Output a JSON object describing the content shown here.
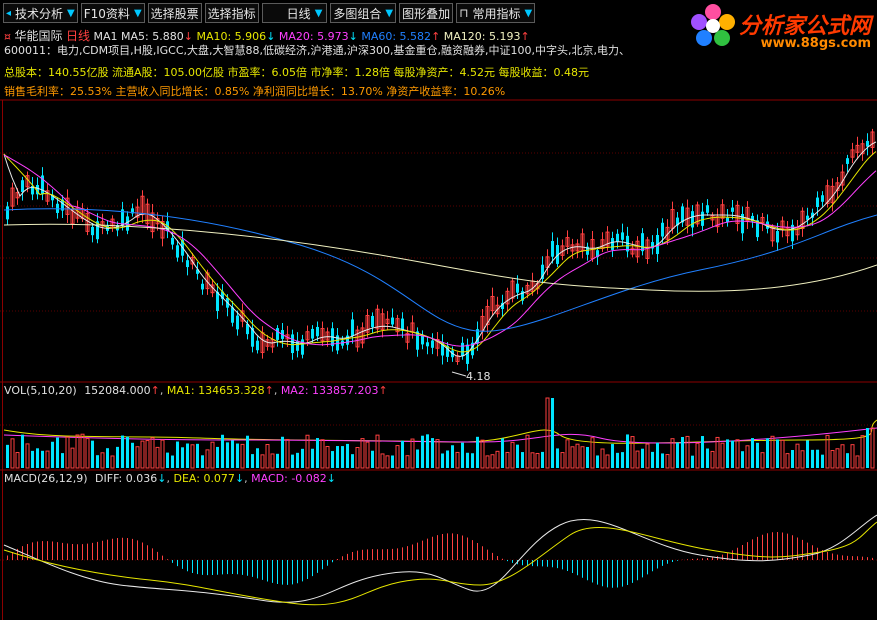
{
  "toolbar": {
    "items": [
      {
        "label": "技术分析",
        "arrow": "▼"
      },
      {
        "label": "F10资料",
        "arrow": "▼"
      },
      {
        "label": "选择股票",
        "arrow": ""
      },
      {
        "label": "选择指标",
        "arrow": ""
      },
      {
        "label": "日线",
        "arrow": "▼"
      },
      {
        "label": "多图组合",
        "arrow": "▼"
      },
      {
        "label": "图形叠加",
        "arrow": ""
      },
      {
        "label": "常用指标",
        "arrow": "▼"
      }
    ]
  },
  "logo": {
    "brand": "分析家公式网",
    "url": "www.88gs.com"
  },
  "stock": {
    "name": "华能国际",
    "period": "日线",
    "ma_labels": "MA1 MA5: 5.880",
    "ma10": "MA10: 5.906",
    "ma20": "MA20: 5.973",
    "ma60": "MA60: 5.582",
    "ma120": "MA120: 5.193",
    "tags": "600011：电力,CDM项目,H股,IGCC,大盘,大智慧88,低碳经济,沪港通,沪深300,基金重仓,融资融券,中证100,中字头,北京,电力、",
    "line2": "总股本：140.55亿股  流通A股：105.00亿股  市盈率：6.05倍  市净率：1.28倍  每股净资产：4.52元    每股收益：0.48元",
    "line3": "销售毛利率：25.53%  主营收入同比增长：0.85%  净利润同比增长：13.70%  净资产收益率：10.26%",
    "low_label": "4.18"
  },
  "volume": {
    "label": "VOL(5,10,20)",
    "vol": "152084.000",
    "ma1": "MA1: 134653.328",
    "ma2": "MA2: 133857.203"
  },
  "macd": {
    "label": "MACD(26,12,9)",
    "diff": "DIFF: 0.036",
    "dea": "DEA: 0.077",
    "macd": "MACD: -0.082"
  },
  "colors": {
    "up": "#ff4040",
    "down": "#00e5ff",
    "ma_white": "#e8e8e8",
    "ma_yellow": "#e6e600",
    "ma_magenta": "#ff40ff",
    "ma_blue": "#2080ff",
    "ma_cream": "#f0f0c0"
  }
}
